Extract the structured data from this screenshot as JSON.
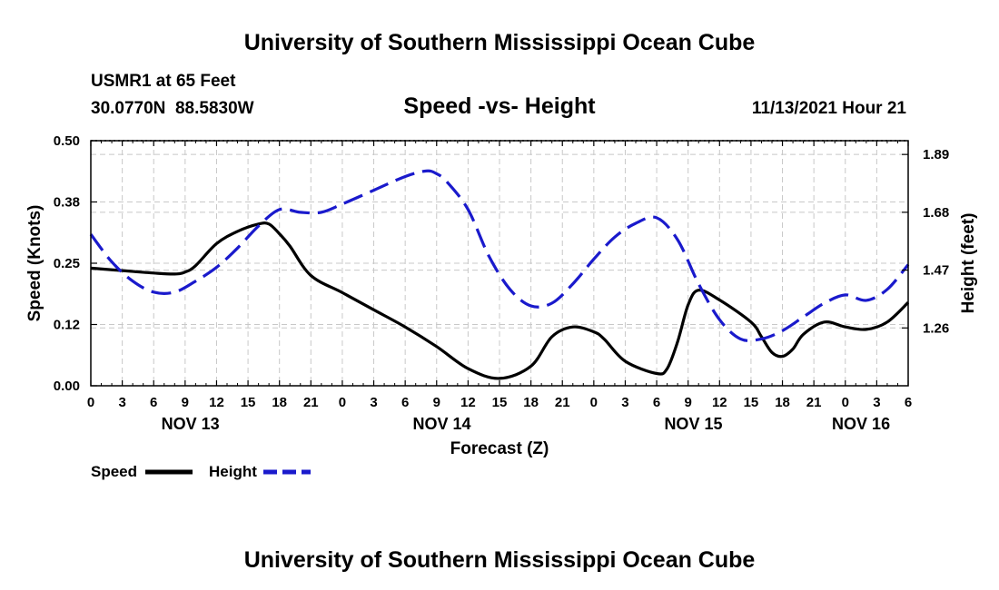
{
  "page": {
    "title": "University of Southern Mississippi Ocean Cube",
    "footer_title": "University of Southern Mississippi Ocean Cube",
    "station": "USMR1 at 65 Feet",
    "coords": "30.0770N  88.5830W",
    "subtitle": "Speed -vs- Height",
    "datetime": "11/13/2021 Hour 21"
  },
  "chart_data": {
    "type": "line",
    "title": "Speed -vs- Height",
    "xlabel": "Forecast (Z)",
    "ylabel": "Speed (Knots)",
    "y2label": "Height (feet)",
    "x_hours_from_nov13_00Z": [
      0,
      78
    ],
    "x_tick_labels": [
      "0",
      "3",
      "6",
      "9",
      "12",
      "15",
      "18",
      "21",
      "0",
      "3",
      "6",
      "9",
      "12",
      "15",
      "18",
      "21",
      "0",
      "3",
      "6",
      "9",
      "12",
      "15",
      "18",
      "21",
      "0",
      "3",
      "6"
    ],
    "date_labels": [
      {
        "label": "NOV 13",
        "hour": 9.5
      },
      {
        "label": "NOV 14",
        "hour": 33.5
      },
      {
        "label": "NOV 15",
        "hour": 57.5
      },
      {
        "label": "NOV 16",
        "hour": 73.5
      }
    ],
    "ylim": [
      0,
      0.5
    ],
    "y_ticks": [
      0.0,
      0.125,
      0.25,
      0.375,
      0.5
    ],
    "y_tick_labels": [
      "0.00",
      "0.12",
      "0.25",
      "0.38",
      "0.50"
    ],
    "y2lim": [
      1.05,
      1.94
    ],
    "y2_ticks": [
      1.26,
      1.47,
      1.68,
      1.89
    ],
    "y2_tick_labels": [
      "1.26",
      "1.47",
      "1.68",
      "1.89"
    ],
    "grid": true,
    "legend": "bottom-left",
    "colors": {
      "speed": "#000000",
      "height": "#1a1acc",
      "grid": "#c8c8c8"
    },
    "series": [
      {
        "name": "Speed",
        "axis": "left",
        "style": "solid",
        "x": [
          0,
          3,
          6,
          8,
          9,
          10,
          12,
          14,
          16,
          17,
          18,
          19,
          21,
          24,
          27,
          30,
          33,
          36,
          39,
          42,
          44,
          46,
          48,
          49,
          51,
          54,
          55,
          56,
          57,
          58,
          60,
          63,
          64,
          65,
          66,
          67,
          68,
          70,
          72,
          74,
          76,
          78
        ],
        "y": [
          0.24,
          0.235,
          0.23,
          0.228,
          0.232,
          0.245,
          0.29,
          0.315,
          0.33,
          0.33,
          0.31,
          0.285,
          0.225,
          0.19,
          0.155,
          0.12,
          0.08,
          0.035,
          0.015,
          0.04,
          0.1,
          0.12,
          0.11,
          0.095,
          0.05,
          0.025,
          0.035,
          0.09,
          0.165,
          0.195,
          0.175,
          0.13,
          0.1,
          0.068,
          0.06,
          0.075,
          0.105,
          0.13,
          0.12,
          0.115,
          0.13,
          0.17
        ]
      },
      {
        "name": "Height",
        "axis": "right",
        "style": "dashed",
        "x": [
          0,
          2,
          4,
          6,
          8,
          10,
          12,
          14,
          16,
          18,
          20,
          22,
          24,
          27,
          30,
          32,
          33,
          34,
          36,
          38,
          40,
          42,
          44,
          46,
          48,
          50,
          52,
          54,
          56,
          58,
          60,
          62,
          64,
          66,
          68,
          70,
          72,
          74,
          76,
          78
        ],
        "y": [
          1.6,
          1.5,
          1.43,
          1.39,
          1.39,
          1.43,
          1.48,
          1.55,
          1.63,
          1.69,
          1.68,
          1.68,
          1.71,
          1.76,
          1.81,
          1.83,
          1.82,
          1.79,
          1.69,
          1.52,
          1.4,
          1.34,
          1.35,
          1.42,
          1.51,
          1.59,
          1.64,
          1.66,
          1.58,
          1.42,
          1.29,
          1.22,
          1.22,
          1.25,
          1.3,
          1.35,
          1.38,
          1.36,
          1.4,
          1.49
        ]
      }
    ]
  }
}
